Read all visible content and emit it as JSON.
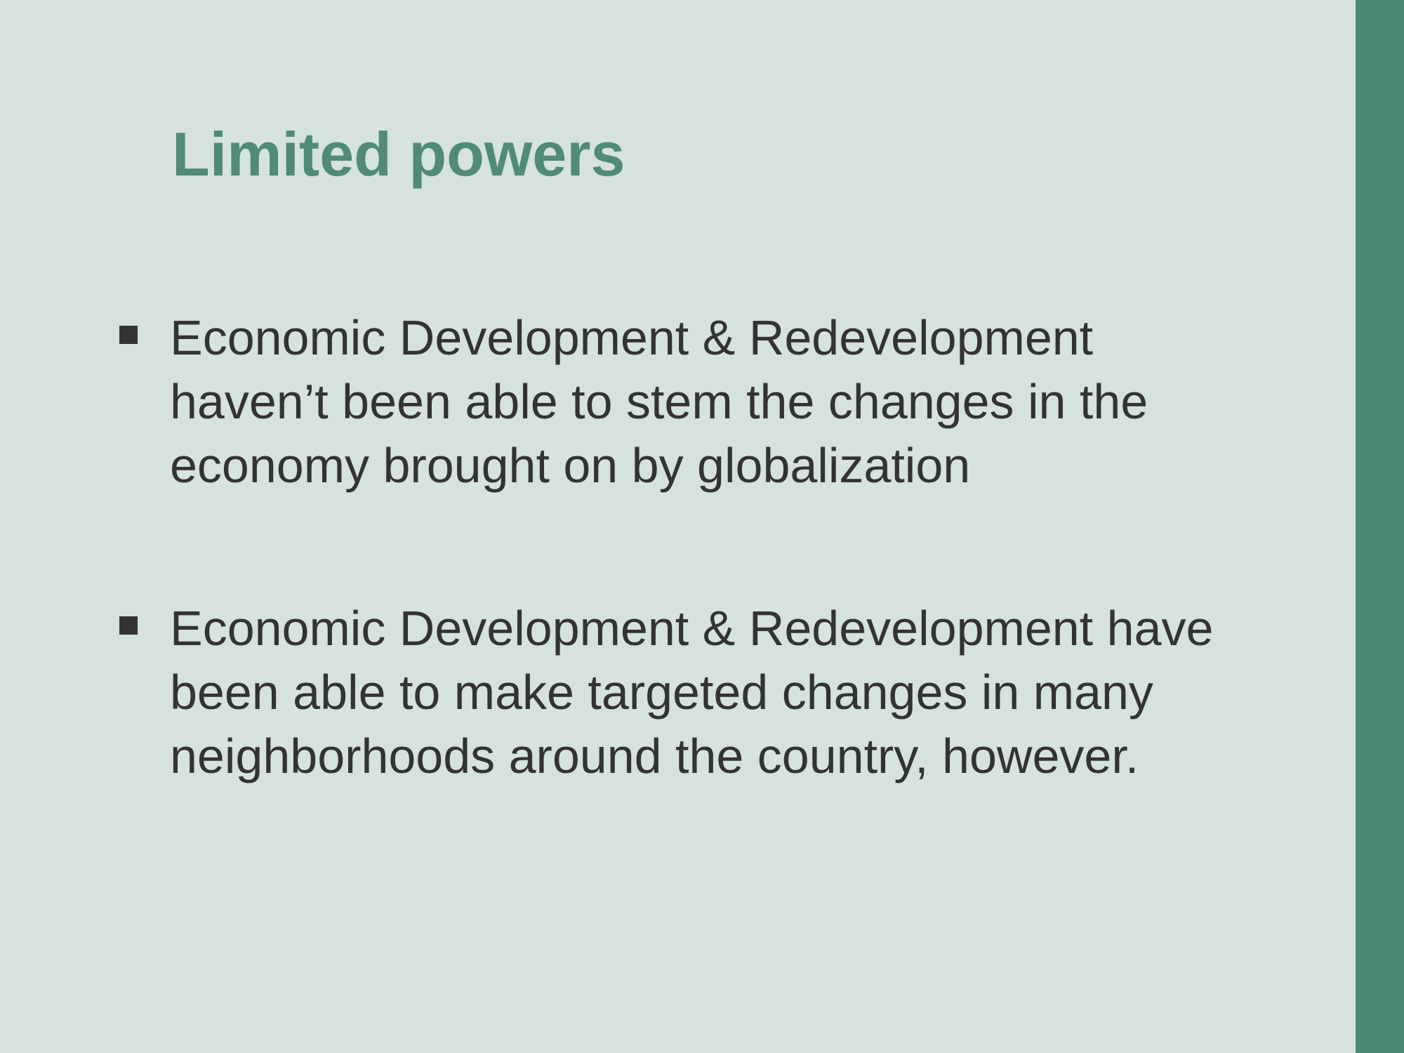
{
  "slide": {
    "title": "Limited powers",
    "bullets": [
      {
        "lines": [
          "Economic Development & Redevelopment",
          "haven’t been able to stem the changes in the",
          "economy brought on by globalization"
        ]
      },
      {
        "lines": [
          "Economic Development & Redevelopment have",
          "been able to make targeted changes in many",
          "neighborhoods around the country, however."
        ]
      }
    ]
  },
  "colors": {
    "background": "#d5e2de",
    "accent_bar": "#498a76",
    "title": "#508a78",
    "body_text": "#333333"
  },
  "icons": {
    "bullet": "square-bullet-icon"
  }
}
